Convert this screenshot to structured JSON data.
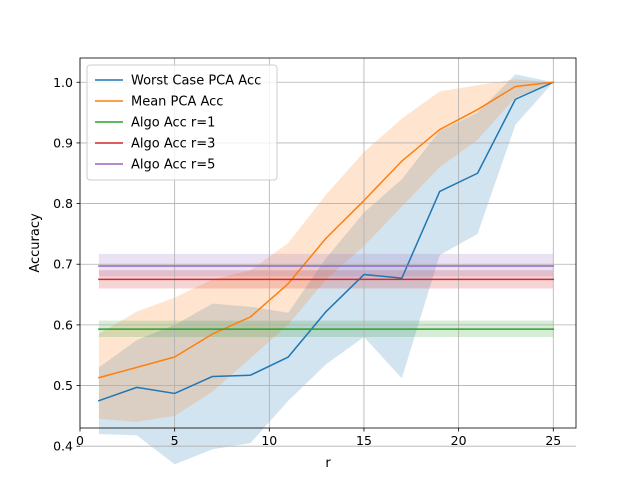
{
  "chart_data": {
    "type": "line",
    "title": "",
    "xlabel": "r",
    "ylabel": "Accuracy",
    "xlim": [
      0,
      26.2
    ],
    "ylim": [
      0.43,
      1.04
    ],
    "x_ticks": [
      0,
      5,
      10,
      15,
      20,
      25
    ],
    "y_ticks": [
      0.4,
      0.5,
      0.6,
      0.7,
      0.8,
      0.9,
      1.0
    ],
    "x_tick_labels": [
      "0",
      "5",
      "10",
      "15",
      "20",
      "25"
    ],
    "y_tick_labels": [
      "0.4",
      "0.5",
      "0.6",
      "0.7",
      "0.8",
      "0.9",
      "1.0"
    ],
    "grid": true,
    "legend_position": "top-left",
    "x": [
      1,
      3,
      5,
      7,
      9,
      11,
      13,
      15,
      17,
      19,
      21,
      23,
      25
    ],
    "series": [
      {
        "name": "Worst Case PCA Acc",
        "color": "#1f77b4",
        "values": [
          0.475,
          0.497,
          0.487,
          0.515,
          0.517,
          0.547,
          0.622,
          0.683,
          0.677,
          0.82,
          0.85,
          0.972,
          1.0
        ],
        "band_lower": [
          0.42,
          0.418,
          0.37,
          0.395,
          0.405,
          0.475,
          0.535,
          0.58,
          0.512,
          0.715,
          0.75,
          0.93,
          1.0
        ],
        "band_upper": [
          0.53,
          0.575,
          0.6,
          0.635,
          0.63,
          0.62,
          0.71,
          0.785,
          0.84,
          0.92,
          0.95,
          1.013,
          1.0
        ]
      },
      {
        "name": "Mean PCA Acc",
        "color": "#ff7f0e",
        "values": [
          0.513,
          0.53,
          0.547,
          0.585,
          0.613,
          0.668,
          0.743,
          0.805,
          0.87,
          0.922,
          0.955,
          0.993,
          1.0
        ],
        "band_lower": [
          0.445,
          0.44,
          0.45,
          0.49,
          0.545,
          0.6,
          0.675,
          0.73,
          0.795,
          0.86,
          0.905,
          0.975,
          1.0
        ],
        "band_upper": [
          0.585,
          0.622,
          0.645,
          0.675,
          0.69,
          0.735,
          0.815,
          0.885,
          0.94,
          0.985,
          0.995,
          1.005,
          1.0
        ]
      },
      {
        "name": "Algo Acc r=1",
        "color": "#2ca02c",
        "constant": 0.593,
        "band": [
          0.58,
          0.607
        ],
        "x_range": [
          1,
          25
        ]
      },
      {
        "name": "Algo Acc r=3",
        "color": "#d62728",
        "constant": 0.675,
        "band": [
          0.66,
          0.69
        ],
        "x_range": [
          1,
          25
        ]
      },
      {
        "name": "Algo Acc r=5",
        "color": "#9467bd",
        "constant": 0.697,
        "band": [
          0.68,
          0.717
        ],
        "x_range": [
          1,
          25
        ]
      }
    ]
  }
}
